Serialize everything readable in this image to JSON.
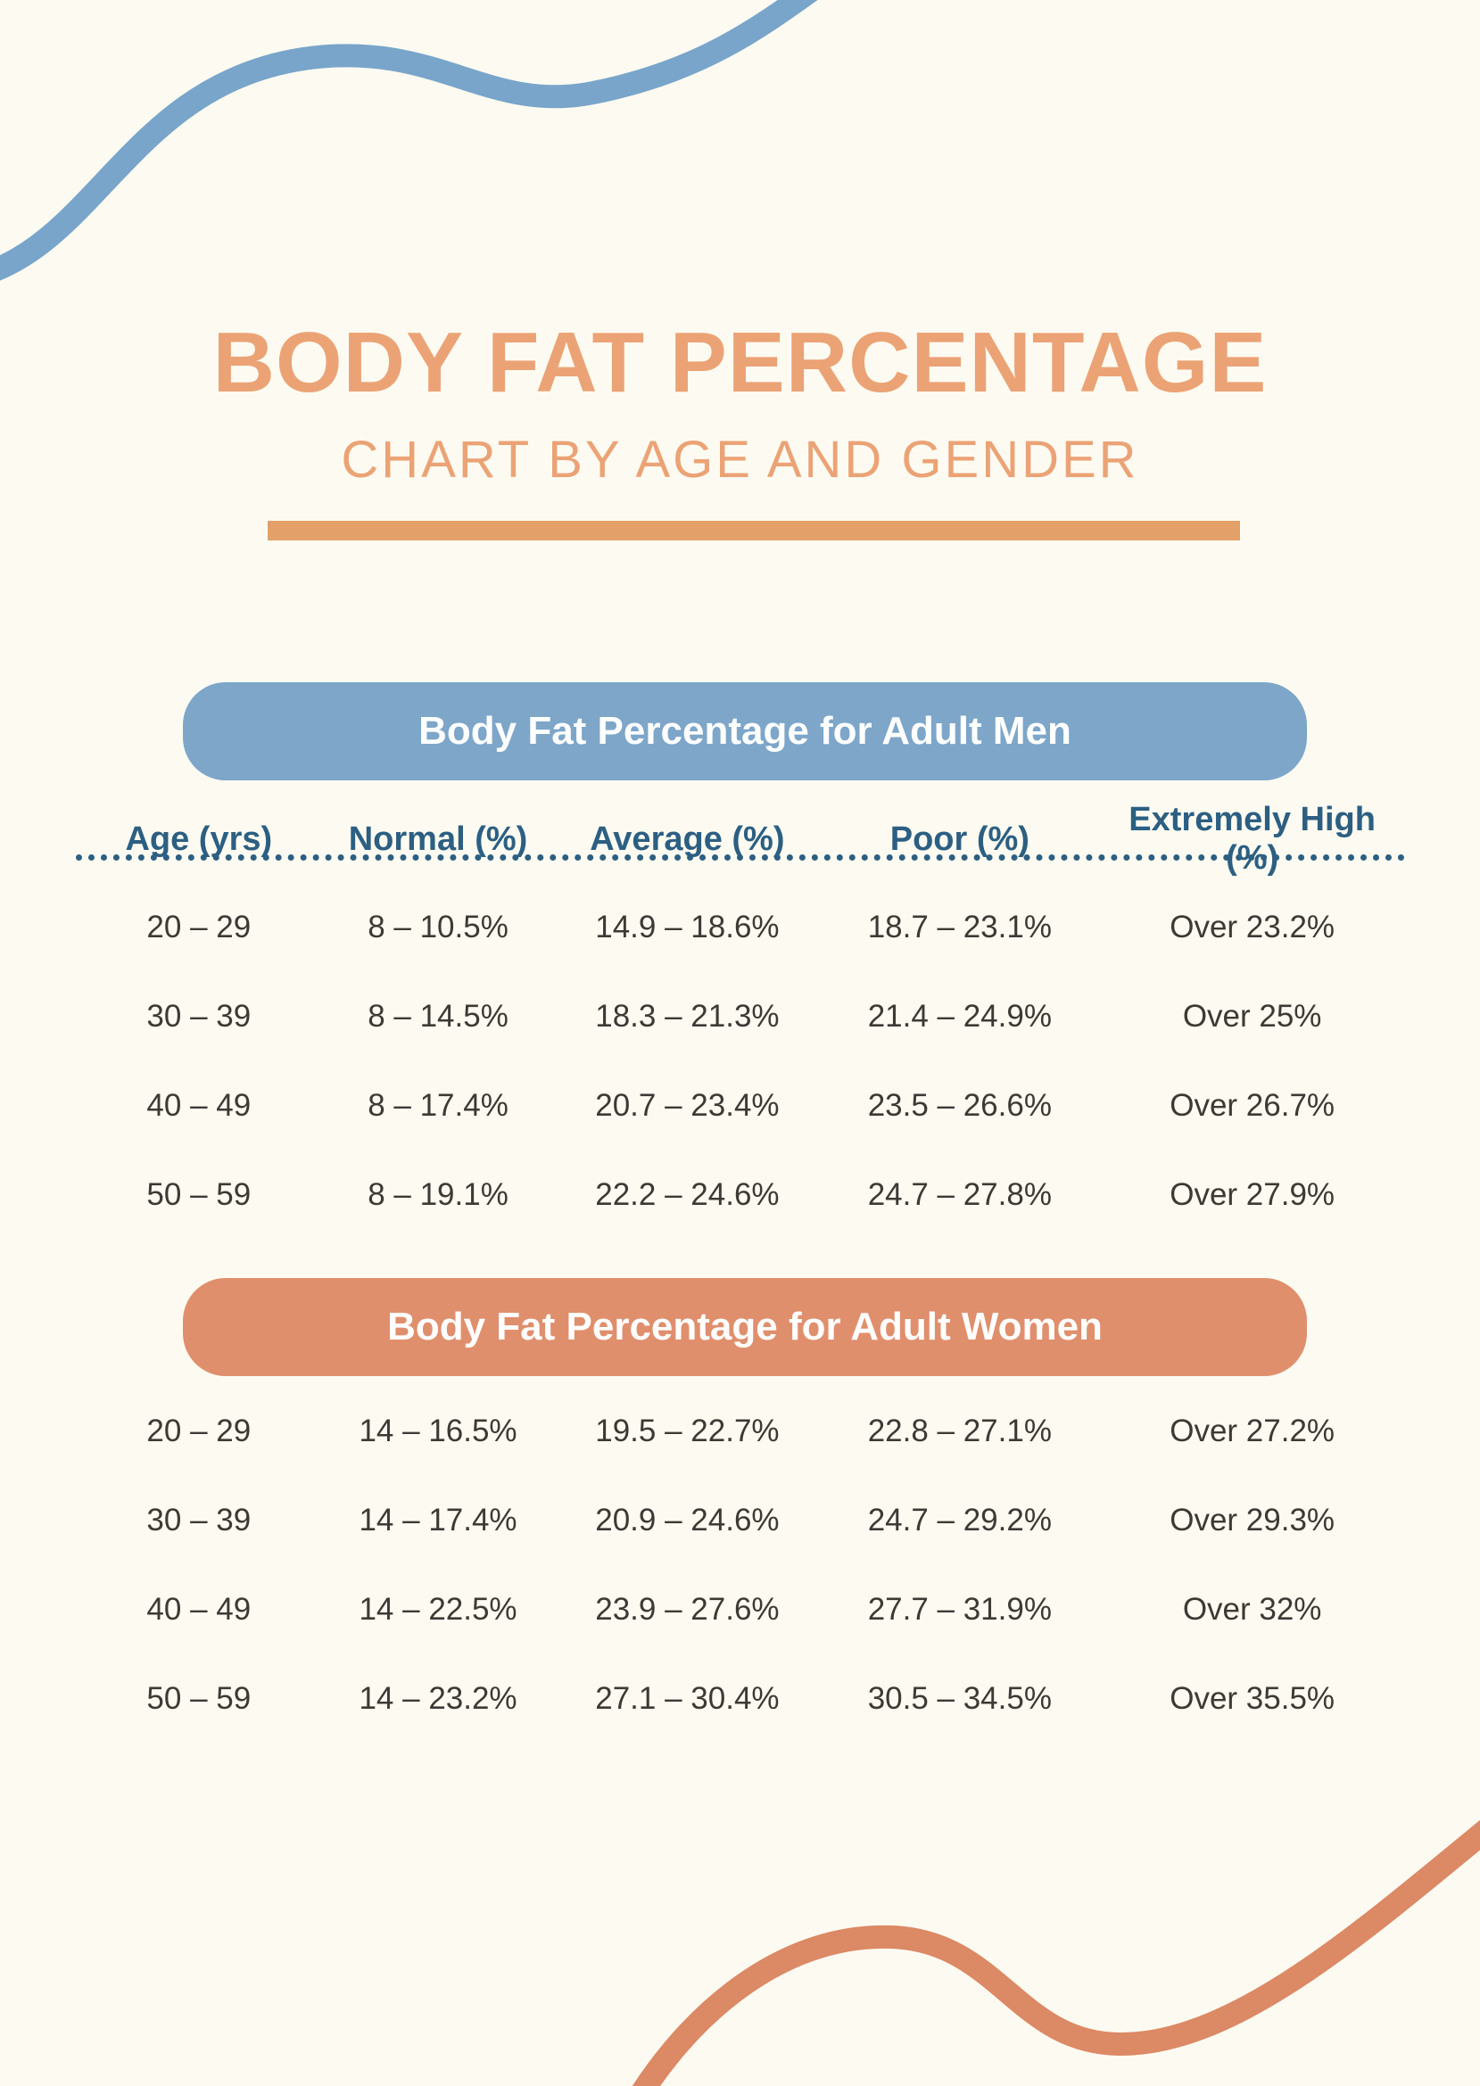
{
  "page": {
    "title": "BODY FAT PERCENTAGE",
    "subtitle": "CHART BY AGE AND GENDER"
  },
  "colors": {
    "background": "#FDFBF1",
    "title_orange": "#EBA376",
    "divider_orange": "#E3A069",
    "men_pill_blue": "#7DA6C9",
    "women_pill_salmon": "#E08F6D",
    "column_header_blue": "#2C5F82",
    "body_text": "#3D3935",
    "wave_top_blue": "#79A5CA",
    "wave_bottom_salmon": "#DC8965"
  },
  "chart_data": {
    "type": "table",
    "title": "BODY FAT PERCENTAGE",
    "subtitle": "CHART BY AGE AND GENDER",
    "columns": [
      "Age (yrs)",
      "Normal (%)",
      "Average (%)",
      "Poor (%)",
      "Extremely High (%)"
    ],
    "tables": [
      {
        "header": "Body Fat Percentage for Adult Men",
        "rows": [
          [
            "20 – 29",
            "8 – 10.5%",
            "14.9 – 18.6%",
            "18.7 – 23.1%",
            "Over 23.2%"
          ],
          [
            "30 – 39",
            "8 – 14.5%",
            "18.3 – 21.3%",
            "21.4 – 24.9%",
            "Over 25%"
          ],
          [
            "40 – 49",
            "8 – 17.4%",
            "20.7 – 23.4%",
            "23.5 – 26.6%",
            "Over 26.7%"
          ],
          [
            "50 – 59",
            "8 – 19.1%",
            "22.2 – 24.6%",
            "24.7 – 27.8%",
            "Over 27.9%"
          ]
        ]
      },
      {
        "header": "Body Fat Percentage for Adult Women",
        "rows": [
          [
            "20 – 29",
            "14 – 16.5%",
            "19.5 – 22.7%",
            "22.8 – 27.1%",
            "Over 27.2%"
          ],
          [
            "30 – 39",
            "14 – 17.4%",
            "20.9 – 24.6%",
            "24.7 – 29.2%",
            "Over 29.3%"
          ],
          [
            "40 – 49",
            "14 – 22.5%",
            "23.9 – 27.6%",
            "27.7 – 31.9%",
            "Over 32%"
          ],
          [
            "50 – 59",
            "14 – 23.2%",
            "27.1 – 30.4%",
            "30.5 – 34.5%",
            "Over 35.5%"
          ]
        ]
      }
    ]
  }
}
